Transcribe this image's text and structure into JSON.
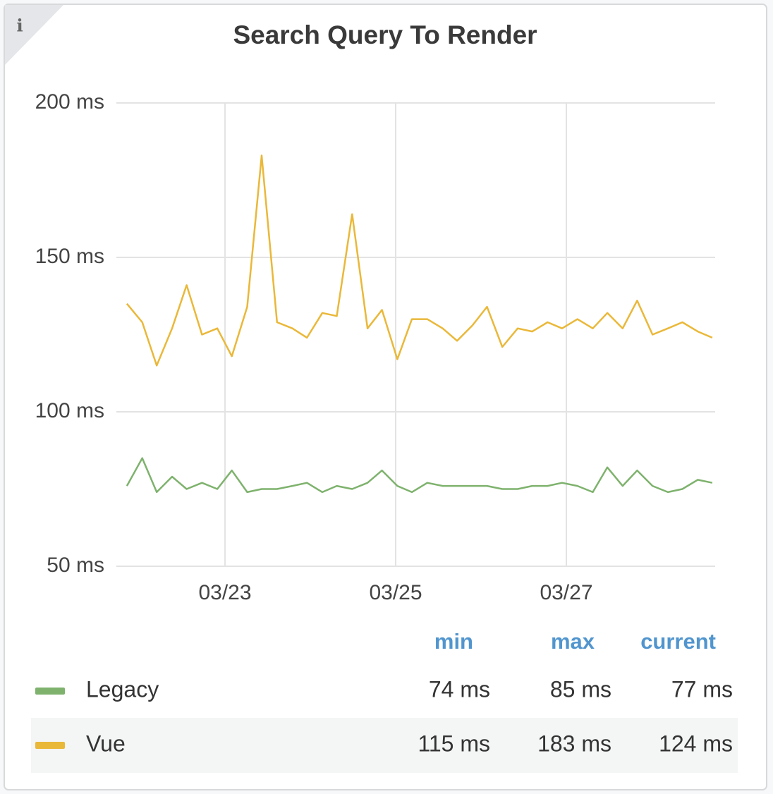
{
  "chart_data": {
    "type": "line",
    "title": "Search Query To Render",
    "info": "i",
    "x": [
      21.85,
      22.03,
      22.2,
      22.38,
      22.55,
      22.73,
      22.91,
      23.08,
      23.26,
      23.43,
      23.61,
      23.79,
      23.96,
      24.14,
      24.31,
      24.49,
      24.67,
      24.84,
      25.02,
      25.19,
      25.37,
      25.55,
      25.72,
      25.9,
      26.07,
      26.25,
      26.43,
      26.6,
      26.78,
      26.95,
      27.13,
      27.31,
      27.48,
      27.66,
      27.83,
      28.01,
      28.19,
      28.36,
      28.54,
      28.71
    ],
    "series": [
      {
        "name": "Legacy",
        "color": "#7eb26d",
        "values": [
          76,
          85,
          74,
          79,
          75,
          77,
          75,
          81,
          74,
          75,
          75,
          76,
          77,
          74,
          76,
          75,
          77,
          81,
          76,
          74,
          77,
          76,
          76,
          76,
          76,
          75,
          75,
          76,
          76,
          77,
          76,
          74,
          82,
          76,
          81,
          76,
          74,
          75,
          78,
          77
        ],
        "stats": [
          74,
          85,
          77
        ],
        "stats_labels": [
          "74 ms",
          "85 ms",
          "77 ms"
        ]
      },
      {
        "name": "Vue",
        "color": "#eab839",
        "values": [
          135,
          129,
          115,
          127,
          141,
          125,
          127,
          118,
          134,
          183,
          129,
          127,
          124,
          132,
          131,
          164,
          127,
          133,
          117,
          130,
          130,
          127,
          123,
          128,
          134,
          121,
          127,
          126,
          129,
          127,
          130,
          127,
          132,
          127,
          136,
          125,
          127,
          129,
          126,
          124
        ],
        "stats": [
          115,
          183,
          124
        ],
        "stats_labels": [
          "115 ms",
          "183 ms",
          "124 ms"
        ]
      }
    ],
    "legend_columns": [
      "min",
      "max",
      "current"
    ],
    "xlim": [
      21.727,
      28.744
    ],
    "xticks": [
      {
        "value": 23,
        "label": "03/23"
      },
      {
        "value": 25,
        "label": "03/25"
      },
      {
        "value": 27,
        "label": "03/27"
      }
    ],
    "ylim": [
      50,
      200
    ],
    "yticks": [
      {
        "value": 50,
        "label": "50 ms"
      },
      {
        "value": 100,
        "label": "100 ms"
      },
      {
        "value": 150,
        "label": "150 ms"
      },
      {
        "value": 200,
        "label": "200 ms"
      }
    ],
    "grid": true
  }
}
